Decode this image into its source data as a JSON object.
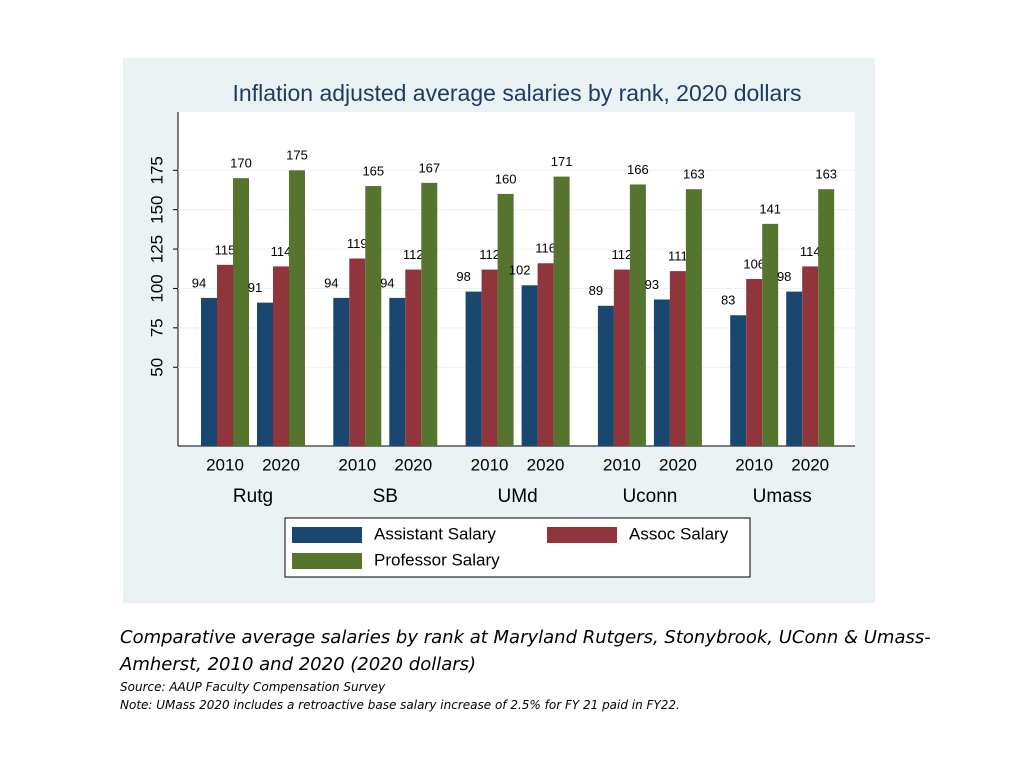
{
  "chart_data": {
    "type": "bar",
    "title": "Inflation adjusted average salaries by rank, 2020 dollars",
    "categories": [
      "2010",
      "2020",
      "2010",
      "2020",
      "2010",
      "2020",
      "2010",
      "2020",
      "2010",
      "2020"
    ],
    "group_labels": [
      "Rutg",
      "SB",
      "UMd",
      "Uconn",
      "Umass"
    ],
    "series": [
      {
        "name": "Assistant Salary",
        "color": "#1a476f",
        "values": [
          94,
          91,
          94,
          94,
          98,
          102,
          89,
          93,
          83,
          98
        ]
      },
      {
        "name": "Assoc Salary",
        "color": "#90353b",
        "values": [
          115,
          114,
          119,
          112,
          112,
          116,
          112,
          111,
          106,
          114
        ]
      },
      {
        "name": "Professor Salary",
        "color": "#55752f",
        "values": [
          170,
          175,
          165,
          167,
          160,
          171,
          166,
          163,
          141,
          163
        ]
      }
    ],
    "ylim": [
      0,
      212
    ],
    "yticks": [
      50,
      75,
      100,
      125,
      150,
      175
    ],
    "grid": true
  },
  "caption": {
    "title": "Comparative average salaries by rank at Maryland Rutgers, Stonybrook, UConn & Umass-Amherst, 2010 and 2020 (2020 dollars)",
    "source": "Source: AAUP Faculty Compensation Survey",
    "note": "Note: UMass 2020 includes a retroactive base salary increase of 2.5% for FY 21 paid in FY22."
  }
}
